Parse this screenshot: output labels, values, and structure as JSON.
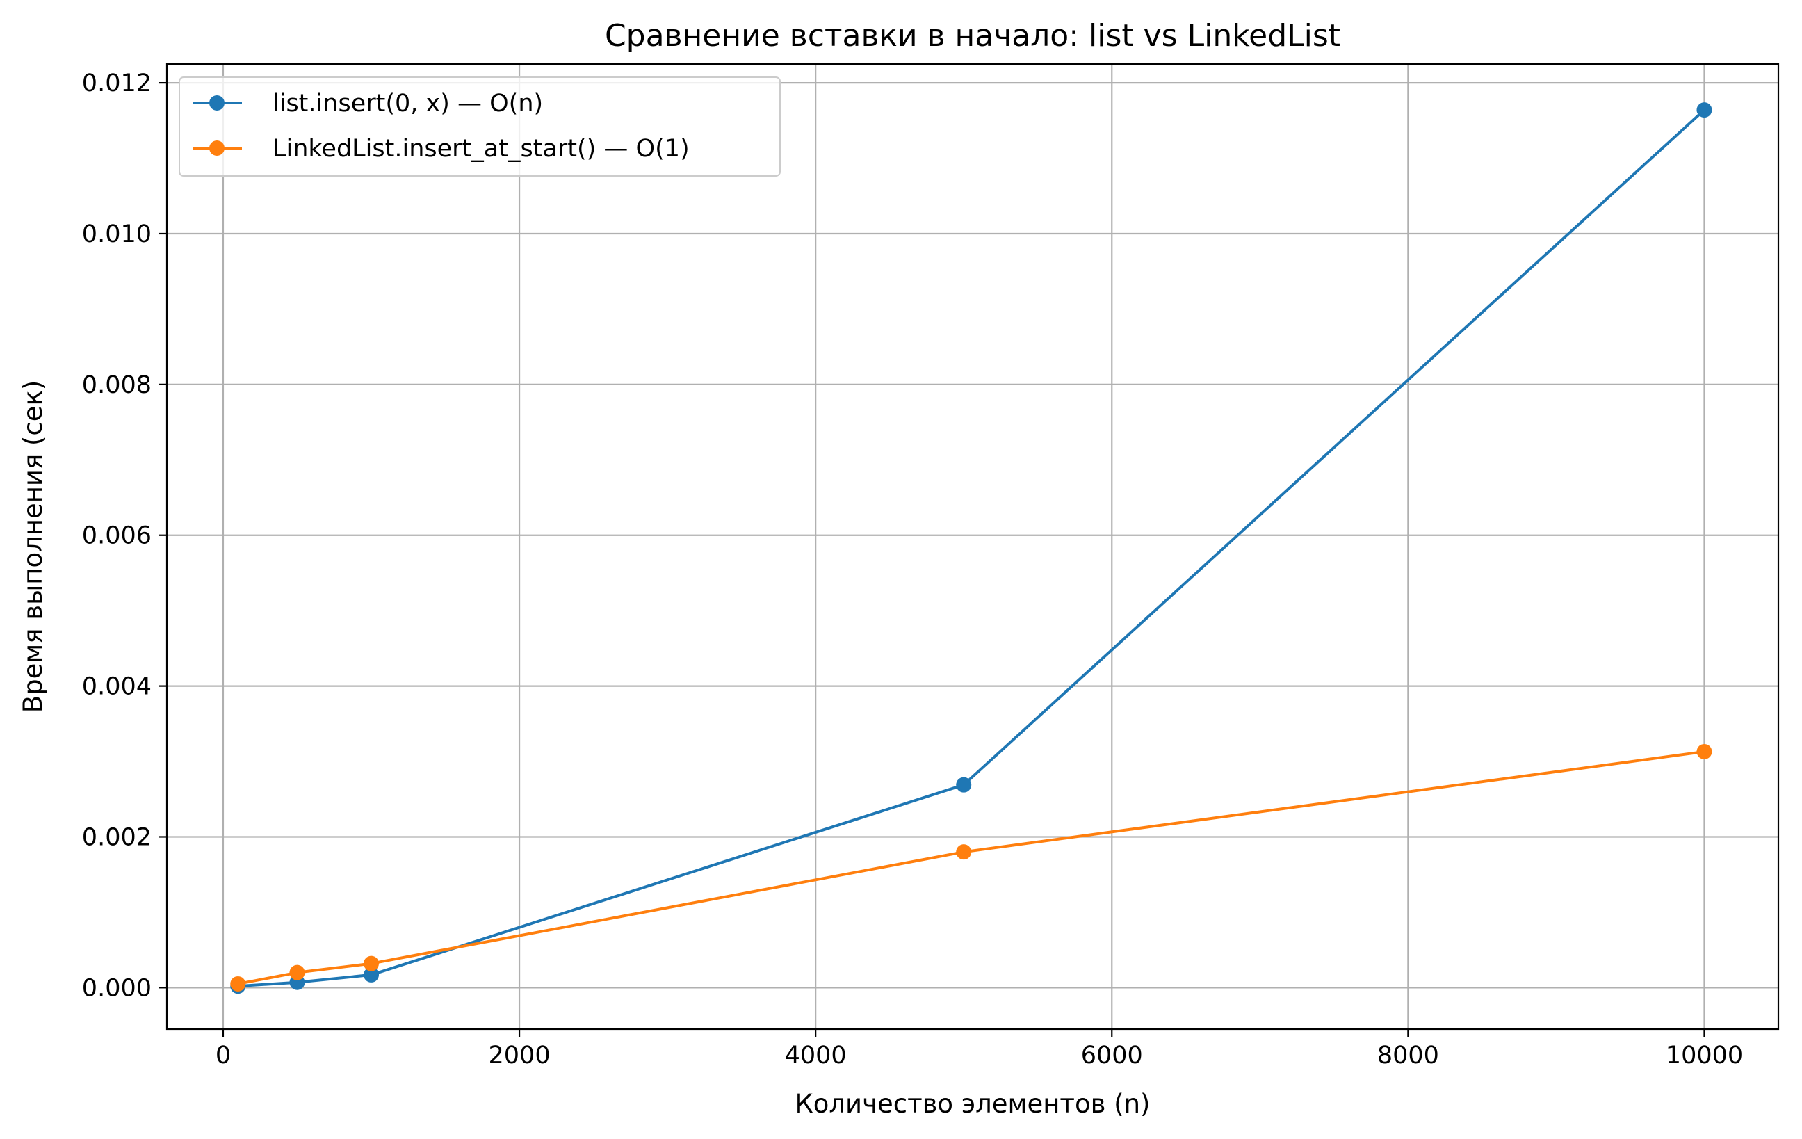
{
  "chart_data": {
    "type": "line",
    "title": "Сравнение вставки в начало: list vs LinkedList",
    "xlabel": "Количество элементов (n)",
    "ylabel": "Время выполнения (сек)",
    "xlim": [
      -380,
      10500
    ],
    "ylim": [
      -0.00055,
      0.01225
    ],
    "xticks": [
      0,
      2000,
      4000,
      6000,
      8000,
      10000
    ],
    "xtick_labels": [
      "0",
      "2000",
      "4000",
      "6000",
      "8000",
      "10000"
    ],
    "yticks": [
      0.0,
      0.002,
      0.004,
      0.006,
      0.008,
      0.01,
      0.012
    ],
    "ytick_labels": [
      "0.000",
      "0.002",
      "0.004",
      "0.006",
      "0.008",
      "0.010",
      "0.012"
    ],
    "grid": true,
    "legend_position": "top-left",
    "x": [
      100,
      500,
      1000,
      5000,
      10000
    ],
    "series": [
      {
        "name": "list.insert(0, x) — O(n)",
        "color": "#1f77b4",
        "values": [
          2e-05,
          7e-05,
          0.00017,
          0.00269,
          0.01164
        ]
      },
      {
        "name": "LinkedList.insert_at_start() — O(1)",
        "color": "#ff7f0e",
        "values": [
          5e-05,
          0.0002,
          0.00032,
          0.0018,
          0.00313
        ]
      }
    ]
  }
}
